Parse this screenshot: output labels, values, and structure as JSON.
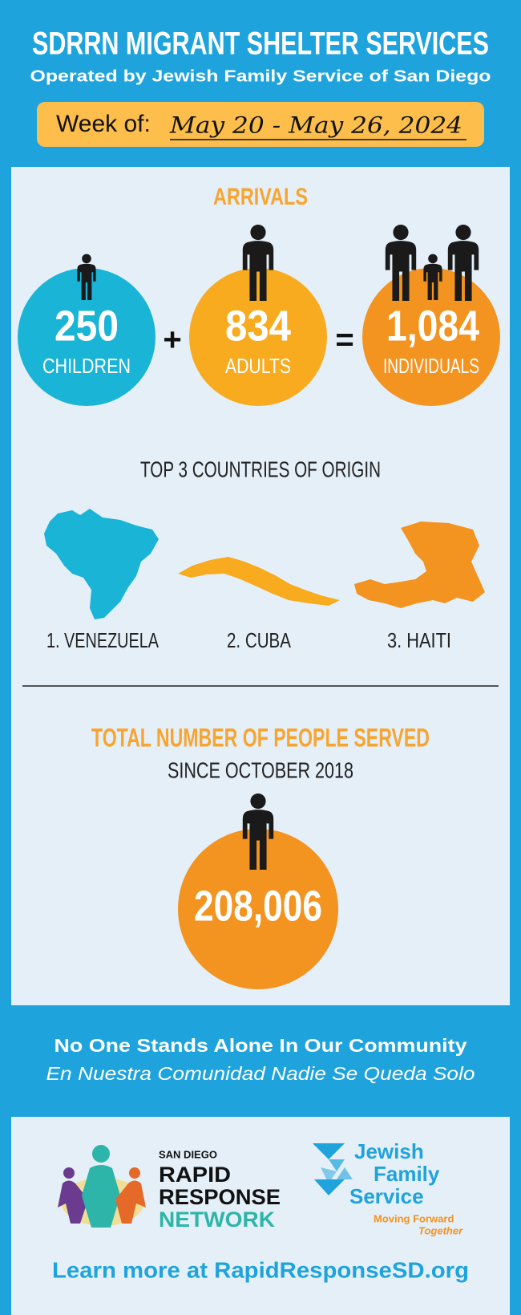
{
  "header": {
    "title": "SDRRN MIGRANT SHELTER SERVICES",
    "subtitle": "Operated by Jewish Family Service of San Diego",
    "week_label": "Week of:",
    "week_range": "May 20 - May 26, 2024"
  },
  "arrivals": {
    "title": "ARRIVALS",
    "plus": "+",
    "equals": "=",
    "items": [
      {
        "number": "250",
        "label": "CHILDREN"
      },
      {
        "number": "834",
        "label": "ADULTS"
      },
      {
        "number": "1,084",
        "label": "INDIVIDUALS"
      }
    ]
  },
  "countries": {
    "title": "TOP 3 COUNTRIES OF ORIGIN",
    "items": [
      "1. VENEZUELA",
      "2. CUBA",
      "3. HAITI"
    ]
  },
  "total": {
    "title": "TOTAL NUMBER OF PEOPLE SERVED",
    "subtitle": "SINCE OCTOBER 2018",
    "number": "208,006"
  },
  "tagline": {
    "english": "No One Stands Alone In Our Community",
    "spanish": "En Nuestra Comunidad Nadie Se Queda Solo"
  },
  "logos": {
    "rrn": {
      "city": "SAN DIEGO",
      "line1": "RAPID",
      "line2": "RESPONSE",
      "line3": "NETWORK"
    },
    "jfs": {
      "line1": "Jewish",
      "line2": "Family",
      "line3": "Service",
      "motto1": "Moving Forward",
      "motto2": "Together"
    }
  },
  "footer": {
    "link": "Learn more at RapidResponseSD.org"
  }
}
